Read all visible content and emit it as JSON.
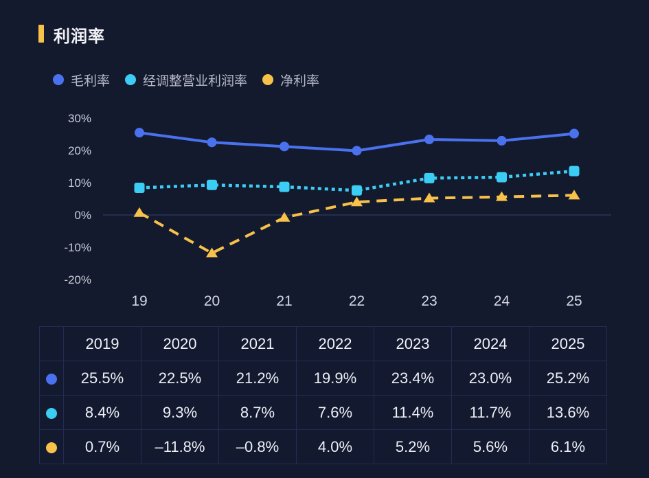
{
  "header": {
    "title": "利润率"
  },
  "colors": {
    "accent_bar": "#f7c14a",
    "gross": "#4a72ef",
    "adjusted": "#3ccdf4",
    "net": "#f7c14a",
    "zero_line": "#2a3458"
  },
  "chart_data": {
    "type": "line",
    "title": "利润率",
    "xlabel": "",
    "ylabel": "",
    "categories": [
      "19",
      "20",
      "21",
      "22",
      "23",
      "24",
      "25"
    ],
    "yticks": [
      "30%",
      "20%",
      "10%",
      "0%",
      "-10%",
      "-20%"
    ],
    "ytick_values": [
      30,
      20,
      10,
      0,
      -10,
      -20
    ],
    "ylim": [
      -20,
      30
    ],
    "grid": false,
    "legend_position": "top-left",
    "series": [
      {
        "name": "毛利率",
        "key": "gross",
        "color": "#4a72ef",
        "marker": "circle",
        "line": "solid",
        "values": [
          25.5,
          22.5,
          21.2,
          19.9,
          23.4,
          23.0,
          25.2
        ]
      },
      {
        "name": "经调整营业利润率",
        "key": "adjusted",
        "color": "#3ccdf4",
        "marker": "square",
        "line": "dotted",
        "values": [
          8.4,
          9.3,
          8.7,
          7.6,
          11.4,
          11.7,
          13.6
        ]
      },
      {
        "name": "净利率",
        "key": "net",
        "color": "#f7c14a",
        "marker": "triangle",
        "line": "dashed",
        "values": [
          0.7,
          -11.8,
          -0.8,
          4.0,
          5.2,
          5.6,
          6.1
        ]
      }
    ]
  },
  "table": {
    "headers": [
      "2019",
      "2020",
      "2021",
      "2022",
      "2023",
      "2024",
      "2025"
    ],
    "rows": [
      {
        "series": "毛利率",
        "color": "#4a72ef",
        "cells": [
          "25.5%",
          "22.5%",
          "21.2%",
          "19.9%",
          "23.4%",
          "23.0%",
          "25.2%"
        ]
      },
      {
        "series": "经调整营业利润率",
        "color": "#3ccdf4",
        "cells": [
          "8.4%",
          "9.3%",
          "8.7%",
          "7.6%",
          "11.4%",
          "11.7%",
          "13.6%"
        ]
      },
      {
        "series": "净利率",
        "color": "#f7c14a",
        "cells": [
          "0.7%",
          "–11.8%",
          "–0.8%",
          "4.0%",
          "5.2%",
          "5.6%",
          "6.1%"
        ]
      }
    ]
  }
}
